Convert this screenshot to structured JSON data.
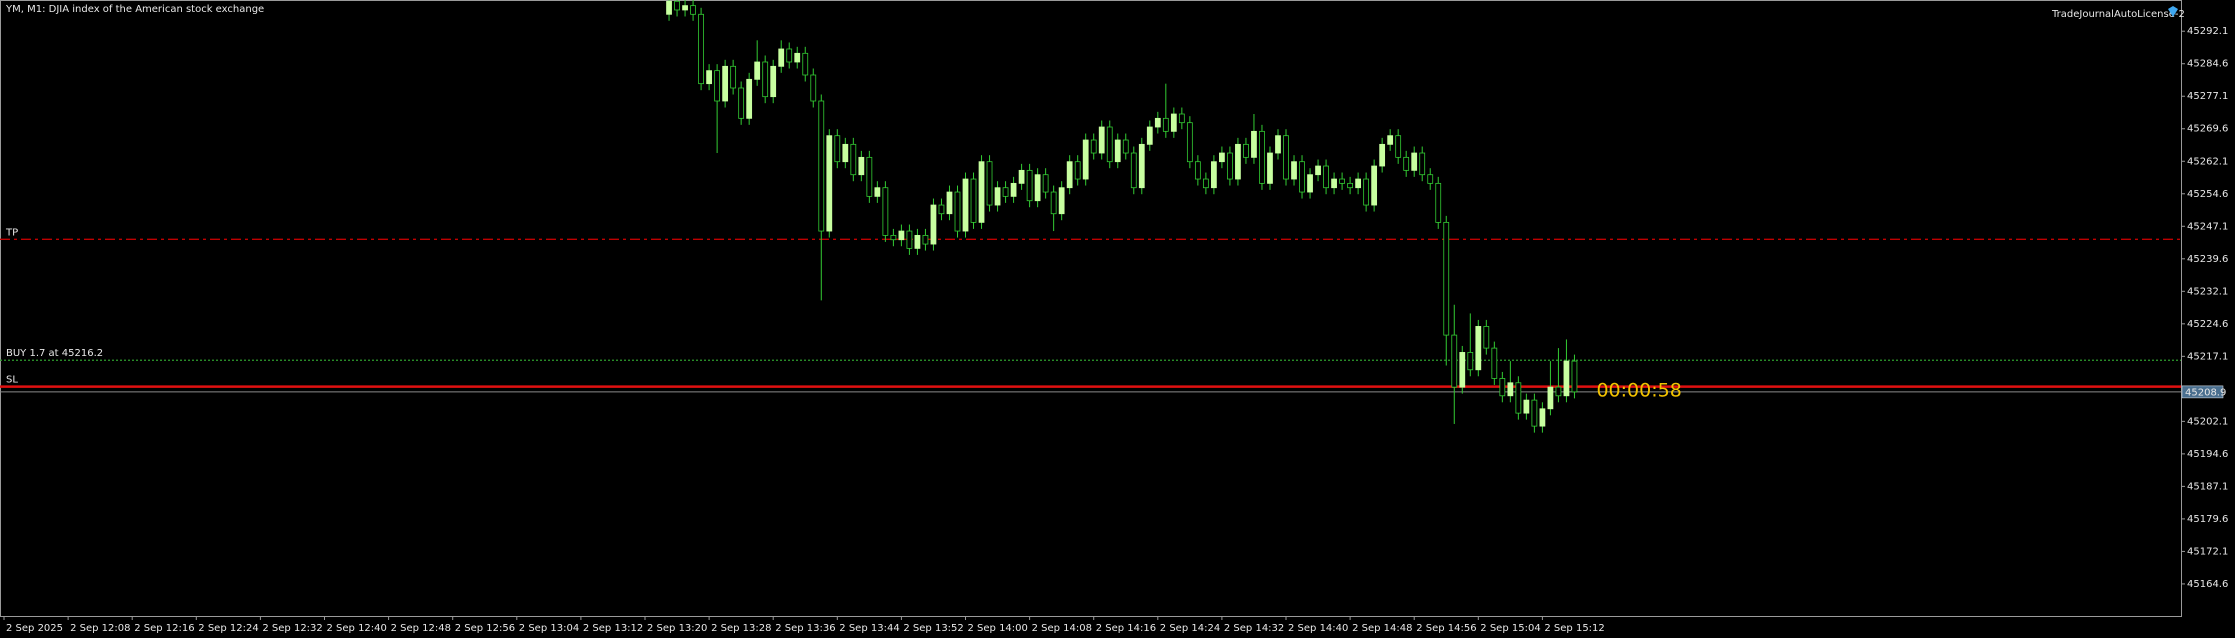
{
  "chart_data": {
    "type": "candlestick",
    "title": "YM, M1:  DJIA index of the American stock exchange",
    "indicator": "TradeJournalAutoLicense-2",
    "timer": "00:00:58",
    "up_color": "#c8ffa0",
    "down_color": "#000000",
    "wick_color": "#33cc33",
    "x": [
      83,
      84,
      85,
      86,
      87,
      88,
      89,
      90,
      91,
      92,
      93,
      94,
      95,
      96,
      97,
      98,
      99,
      100,
      101,
      102,
      103,
      104,
      105,
      106,
      107,
      108,
      109,
      110,
      111,
      112,
      113,
      114,
      115,
      116,
      117,
      118,
      119,
      120,
      121,
      122,
      123,
      124,
      125,
      126,
      127,
      128,
      129,
      130,
      131,
      132,
      133,
      134,
      135,
      136,
      137,
      138,
      139,
      140,
      141,
      142,
      143,
      144,
      145,
      146,
      147,
      148,
      149,
      150,
      151,
      152,
      153,
      154,
      155,
      156,
      157,
      158,
      159,
      160,
      161,
      162,
      163,
      164,
      165,
      166,
      167,
      168,
      169,
      170,
      171,
      172,
      173,
      174,
      175,
      176,
      177,
      178,
      179,
      180,
      181,
      182,
      183,
      184,
      185,
      186,
      187,
      188,
      189,
      190,
      191,
      192,
      193,
      194,
      195,
      196
    ],
    "open": [
      45296,
      45299,
      45297,
      45298,
      45296,
      45280,
      45283,
      45276,
      45284,
      45279,
      45272,
      45281,
      45285,
      45277,
      45284,
      45288,
      45285,
      45287,
      45282,
      45276,
      45246,
      45268,
      45262,
      45266,
      45259,
      45263,
      45254,
      45256,
      45245,
      45244,
      45246,
      45242,
      45245,
      45243,
      45252,
      45250,
      45255,
      45246,
      45258,
      45248,
      45262,
      45252,
      45256,
      45254,
      45257,
      45260,
      45253,
      45259,
      45255,
      45250,
      45256,
      45262,
      45258,
      45267,
      45264,
      45270,
      45262,
      45267,
      45264,
      45256,
      45266,
      45270,
      45272,
      45269,
      45273,
      45271,
      45262,
      45258,
      45256,
      45262,
      45264,
      45258,
      45266,
      45263,
      45269,
      45257,
      45264,
      45268,
      45258,
      45262,
      45255,
      45259,
      45261,
      45256,
      45258,
      45257,
      45256,
      45258,
      45252,
      45261,
      45266,
      45268,
      45263,
      45260,
      45264,
      45259,
      45257,
      45248,
      45222,
      45210,
      45218,
      45214,
      45224,
      45219,
      45212,
      45208,
      45211,
      45204,
      45207,
      45201,
      45205,
      45210,
      45208,
      45216
    ],
    "high": [
      45300.5,
      45300.5,
      45299.5,
      45299.5,
      45297.5,
      45284.5,
      45284.5,
      45285.5,
      45285.5,
      45280.5,
      45282.5,
      45290,
      45286.5,
      45285.5,
      45290,
      45289.5,
      45288.5,
      45288.5,
      45283.5,
      45277.5,
      45269.5,
      45269.5,
      45267.5,
      45267.5,
      45264.5,
      45264.5,
      45257.5,
      45257.5,
      45246.5,
      45247.5,
      45247.5,
      45246.5,
      45246.5,
      45253.5,
      45253.5,
      45256.5,
      45256.5,
      45259.5,
      45259.5,
      45263.5,
      45263.5,
      45257.5,
      45257.5,
      45258.5,
      45261.5,
      45261.5,
      45260.5,
      45260.5,
      45256.5,
      45257.5,
      45263.5,
      45263.5,
      45268.5,
      45268.5,
      45271.5,
      45271.5,
      45268.5,
      45268.5,
      45265.5,
      45267.5,
      45271.5,
      45273.5,
      45280,
      45274.5,
      45274.5,
      45272.5,
      45263.5,
      45259.5,
      45263.5,
      45265.5,
      45265.5,
      45267.5,
      45267.5,
      45273,
      45270.5,
      45265.5,
      45269.5,
      45269.5,
      45263.5,
      45263.5,
      45260.5,
      45262.5,
      45262.5,
      45259.5,
      45259.5,
      45258.5,
      45259.5,
      45259.5,
      45262.5,
      45267.5,
      45269.5,
      45269.5,
      45264.5,
      45265.5,
      45265.5,
      45260.5,
      45258.5,
      45249.5,
      45229,
      45219.5,
      45227,
      45225.5,
      45225.5,
      45220.5,
      45213.5,
      45216,
      45212.5,
      45208.5,
      45208.5,
      45206.5,
      45216,
      45219,
      45221,
      45217.5
    ],
    "low": [
      45294.5,
      45295.5,
      45295.5,
      45294.5,
      45278.5,
      45278.5,
      45264,
      45274.5,
      45277.5,
      45270.5,
      45270.5,
      45279.5,
      45275.5,
      45275.5,
      45282.5,
      45283.5,
      45283.5,
      45280.5,
      45274.5,
      45230,
      45244.5,
      45260.5,
      45260.5,
      45257.5,
      45257.5,
      45252.5,
      45252.5,
      45243.5,
      45242.5,
      45242.5,
      45240.5,
      45240.5,
      45241.5,
      45241.5,
      45248.5,
      45248.5,
      45244.5,
      45244.5,
      45246.5,
      45246.5,
      45250.5,
      45250.5,
      45252.5,
      45252.5,
      45255.5,
      45251.5,
      45251.5,
      45253.5,
      45246,
      45248.5,
      45254.5,
      45256.5,
      45256.5,
      45262.5,
      45262.5,
      45260.5,
      45260.5,
      45262.5,
      45254.5,
      45254.5,
      45264.5,
      45268.5,
      45267.5,
      45267.5,
      45269.5,
      45260.5,
      45256.5,
      45254.5,
      45254.5,
      45260.5,
      45256.5,
      45256.5,
      45261.5,
      45261.5,
      45255.5,
      45255.5,
      45262.5,
      45256.5,
      45256.5,
      45253.5,
      45253.5,
      45257.5,
      45254.5,
      45254.5,
      45255.5,
      45254.5,
      45254.5,
      45250.5,
      45250.5,
      45259.5,
      45264.5,
      45261.5,
      45258.5,
      45258.5,
      45257.5,
      45255.5,
      45246.5,
      45215,
      45201.5,
      45208.5,
      45212.5,
      45212.5,
      45217.5,
      45210.5,
      45206.5,
      45206.5,
      45202.5,
      45202.5,
      45199.5,
      45199.5,
      45203.5,
      45206.5,
      45206.5,
      45207.4
    ],
    "close": [
      45299,
      45297,
      45298,
      45296,
      45280,
      45283,
      45276,
      45284,
      45279,
      45272,
      45281,
      45285,
      45277,
      45284,
      45288,
      45285,
      45287,
      45282,
      45276,
      45246,
      45268,
      45262,
      45266,
      45259,
      45263,
      45254,
      45256,
      45245,
      45244,
      45246,
      45242,
      45245,
      45243,
      45252,
      45250,
      45255,
      45246,
      45258,
      45248,
      45262,
      45252,
      45256,
      45254,
      45257,
      45260,
      45253,
      45259,
      45255,
      45250,
      45256,
      45262,
      45258,
      45267,
      45264,
      45270,
      45262,
      45267,
      45264,
      45256,
      45266,
      45270,
      45272,
      45269,
      45273,
      45271,
      45262,
      45258,
      45256,
      45262,
      45264,
      45258,
      45266,
      45263,
      45269,
      45257,
      45264,
      45268,
      45258,
      45262,
      45255,
      45259,
      45261,
      45256,
      45258,
      45257,
      45256,
      45258,
      45252,
      45261,
      45266,
      45268,
      45263,
      45260,
      45264,
      45259,
      45257,
      45248,
      45222,
      45210,
      45218,
      45214,
      45224,
      45219,
      45212,
      45208,
      45211,
      45204,
      45207,
      45201,
      45205,
      45210,
      45208,
      45216,
      45208.9
    ],
    "xlim": [
      -0.5,
      271.7
    ],
    "xticks": [
      {
        "value": 0,
        "label": "2 Sep 2025"
      },
      {
        "value": 8,
        "label": "2 Sep 12:08"
      },
      {
        "value": 16,
        "label": "2 Sep 12:16"
      },
      {
        "value": 24,
        "label": "2 Sep 12:24"
      },
      {
        "value": 32,
        "label": "2 Sep 12:32"
      },
      {
        "value": 40,
        "label": "2 Sep 12:40"
      },
      {
        "value": 48,
        "label": "2 Sep 12:48"
      },
      {
        "value": 56,
        "label": "2 Sep 12:56"
      },
      {
        "value": 64,
        "label": "2 Sep 13:04"
      },
      {
        "value": 72,
        "label": "2 Sep 13:12"
      },
      {
        "value": 80,
        "label": "2 Sep 13:20"
      },
      {
        "value": 88,
        "label": "2 Sep 13:28"
      },
      {
        "value": 96,
        "label": "2 Sep 13:36"
      },
      {
        "value": 104,
        "label": "2 Sep 13:44"
      },
      {
        "value": 112,
        "label": "2 Sep 13:52"
      },
      {
        "value": 120,
        "label": "2 Sep 14:00"
      },
      {
        "value": 128,
        "label": "2 Sep 14:08"
      },
      {
        "value": 136,
        "label": "2 Sep 14:16"
      },
      {
        "value": 144,
        "label": "2 Sep 14:24"
      },
      {
        "value": 152,
        "label": "2 Sep 14:32"
      },
      {
        "value": 160,
        "label": "2 Sep 14:40"
      },
      {
        "value": 168,
        "label": "2 Sep 14:48"
      },
      {
        "value": 176,
        "label": "2 Sep 14:56"
      },
      {
        "value": 184,
        "label": "2 Sep 15:04"
      },
      {
        "value": 192,
        "label": "2 Sep 15:12"
      }
    ],
    "ylim": [
      45157.2,
      45299.3
    ],
    "yticks": [
      45164.6,
      45172.1,
      45179.6,
      45187.1,
      45194.6,
      45202.1,
      45217.1,
      45224.6,
      45232.1,
      45239.6,
      45247.1,
      45254.6,
      45262.1,
      45269.6,
      45277.1,
      45284.6,
      45292.1
    ],
    "levels": [
      {
        "name": "TP",
        "value": 45244.1,
        "color": "#c00000",
        "dash": "10 4 3 4",
        "width": 1.3
      },
      {
        "name": "BUY 1.7 at 45216.2",
        "value": 45216.2,
        "color": "#2e9e2e",
        "dash": "2 2",
        "width": 1.3
      },
      {
        "name": "SL",
        "value": 45210.1,
        "color": "#e01010",
        "dash": "",
        "width": 2.5
      }
    ],
    "bid": 45208.9,
    "bid_color": "#8a8a8a"
  }
}
